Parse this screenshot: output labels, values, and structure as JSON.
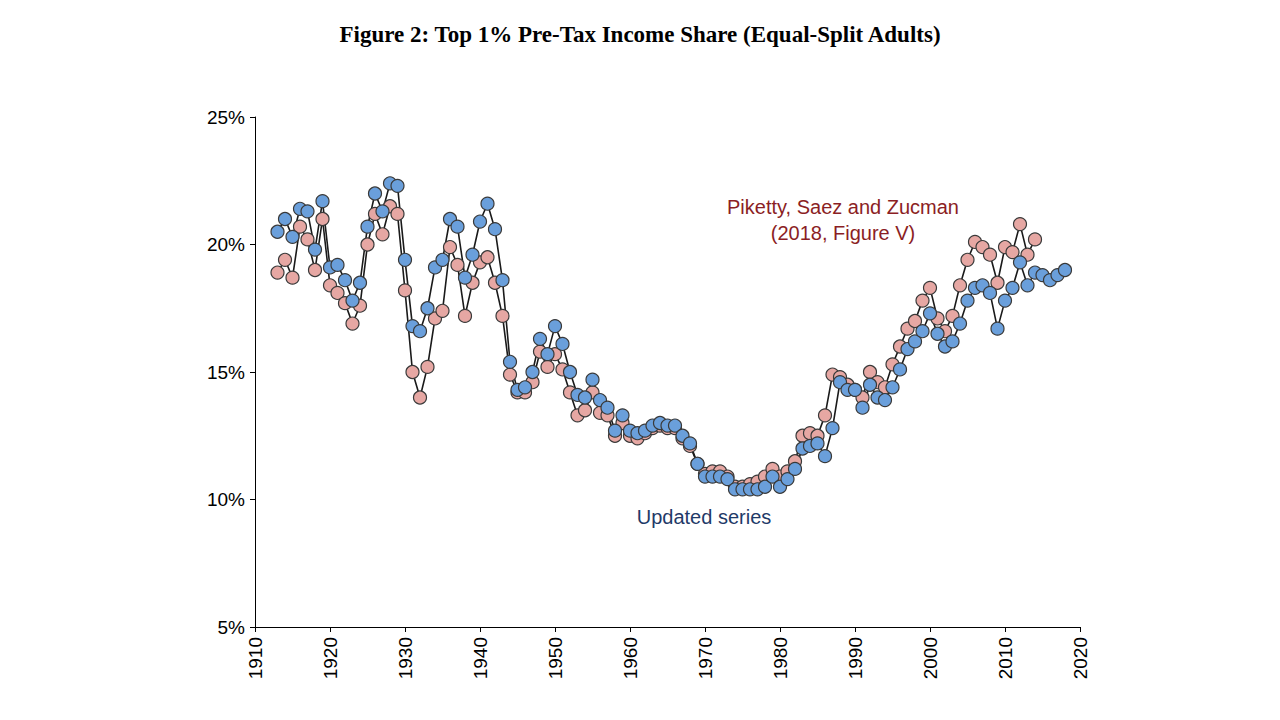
{
  "chart_data": {
    "type": "line",
    "title": "Figure 2: Top 1% Pre-Tax Income Share (Equal-Split Adults)",
    "annotations": [
      "Piketty, Saez and Zucman\n(2018, Figure V)",
      "Updated series"
    ],
    "x": [
      1913,
      1914,
      1915,
      1916,
      1917,
      1918,
      1919,
      1920,
      1921,
      1922,
      1923,
      1924,
      1925,
      1926,
      1927,
      1928,
      1929,
      1930,
      1931,
      1932,
      1933,
      1934,
      1935,
      1936,
      1937,
      1938,
      1939,
      1940,
      1941,
      1942,
      1943,
      1944,
      1945,
      1946,
      1947,
      1948,
      1949,
      1950,
      1951,
      1952,
      1953,
      1954,
      1955,
      1956,
      1957,
      1958,
      1959,
      1960,
      1961,
      1962,
      1963,
      1964,
      1965,
      1966,
      1967,
      1968,
      1969,
      1970,
      1971,
      1972,
      1973,
      1974,
      1975,
      1976,
      1977,
      1978,
      1979,
      1980,
      1981,
      1982,
      1983,
      1984,
      1985,
      1986,
      1987,
      1988,
      1989,
      1990,
      1991,
      1992,
      1993,
      1994,
      1995,
      1996,
      1997,
      1998,
      1999,
      2000,
      2001,
      2002,
      2003,
      2004,
      2005,
      2006,
      2007,
      2008,
      2009,
      2010,
      2011,
      2012,
      2013,
      2014,
      2015,
      2016,
      2017,
      2018
    ],
    "series": [
      {
        "name": "Piketty, Saez and Zucman (2018, Figure V)",
        "color": "#e6a7a3",
        "marker": "circle",
        "line_style": "solid",
        "values": [
          18.9,
          19.4,
          18.7,
          20.7,
          20.2,
          19.0,
          21.0,
          18.4,
          18.1,
          17.7,
          16.9,
          17.6,
          20.0,
          21.2,
          20.4,
          21.5,
          21.2,
          18.2,
          15.0,
          14.0,
          15.2,
          17.1,
          17.4,
          19.9,
          19.2,
          17.2,
          18.5,
          19.3,
          19.5,
          18.5,
          17.2,
          14.9,
          14.2,
          14.2,
          14.6,
          15.8,
          15.2,
          15.7,
          15.1,
          14.2,
          13.3,
          13.5,
          14.2,
          13.4,
          13.3,
          12.5,
          13.0,
          12.5,
          12.4,
          12.6,
          12.8,
          12.9,
          12.8,
          12.8,
          12.4,
          12.1,
          11.4,
          11.0,
          11.1,
          11.1,
          10.9,
          10.5,
          10.5,
          10.6,
          10.7,
          10.9,
          11.2,
          10.9,
          11.1,
          11.5,
          12.5,
          12.6,
          12.5,
          13.3,
          14.9,
          14.8,
          14.5,
          14.3,
          14.0,
          15.0,
          14.6,
          14.4,
          15.3,
          16.0,
          16.7,
          17.0,
          17.8,
          18.3,
          17.1,
          16.6,
          17.2,
          18.4,
          19.4,
          20.1,
          19.9,
          19.6,
          18.5,
          19.9,
          19.7,
          20.8,
          19.6,
          20.2,
          null,
          null,
          null,
          null
        ]
      },
      {
        "name": "Updated series",
        "color": "#6a9fdb",
        "marker": "circle",
        "line_style": "solid",
        "values": [
          20.5,
          21.0,
          20.3,
          21.4,
          21.3,
          19.8,
          21.7,
          19.1,
          19.2,
          18.6,
          17.8,
          18.5,
          20.7,
          22.0,
          21.3,
          22.4,
          22.3,
          19.4,
          16.8,
          16.6,
          17.5,
          19.1,
          19.4,
          21.0,
          20.7,
          18.7,
          19.6,
          20.9,
          21.6,
          20.6,
          18.6,
          15.4,
          14.3,
          14.4,
          15.0,
          16.3,
          15.7,
          16.8,
          16.1,
          15.0,
          14.1,
          14.0,
          14.7,
          13.9,
          13.6,
          12.7,
          13.3,
          12.7,
          12.6,
          12.7,
          12.9,
          13.0,
          12.9,
          12.9,
          12.5,
          12.2,
          11.4,
          10.9,
          10.9,
          10.9,
          10.8,
          10.4,
          10.4,
          10.4,
          10.4,
          10.5,
          10.9,
          10.5,
          10.8,
          11.2,
          12.0,
          12.1,
          12.2,
          11.7,
          12.8,
          14.6,
          14.3,
          14.3,
          13.6,
          14.5,
          14.0,
          13.9,
          14.4,
          15.1,
          15.9,
          16.2,
          16.6,
          17.3,
          16.5,
          16.0,
          16.2,
          16.9,
          17.8,
          18.3,
          18.4,
          18.1,
          16.7,
          17.8,
          18.3,
          19.3,
          18.4,
          18.9,
          18.8,
          18.6,
          18.8,
          19.0
        ]
      }
    ],
    "xlim": [
      1910,
      2020
    ],
    "xticks": [
      1910,
      1920,
      1930,
      1940,
      1950,
      1960,
      1970,
      1980,
      1990,
      2000,
      2010,
      2020
    ],
    "ylim": [
      5,
      25
    ],
    "yticks": [
      {
        "value": 5,
        "label": "5%"
      },
      {
        "value": 10,
        "label": "10%"
      },
      {
        "value": 15,
        "label": "15%"
      },
      {
        "value": 20,
        "label": "20%"
      },
      {
        "value": 25,
        "label": "25%"
      }
    ],
    "grid": false,
    "legend": "none"
  }
}
